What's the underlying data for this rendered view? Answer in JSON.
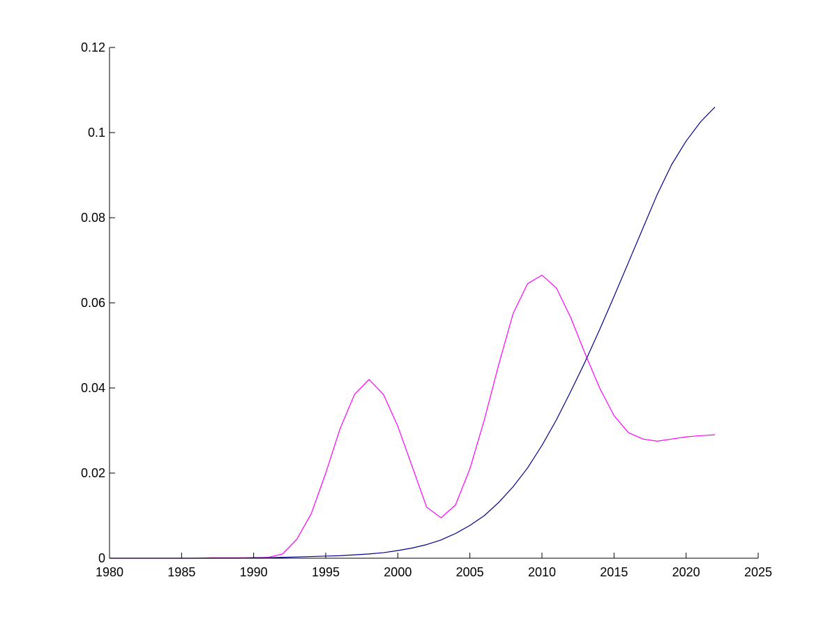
{
  "chart_data": {
    "type": "line",
    "title": "",
    "xlabel": "",
    "ylabel": "",
    "xlim": [
      1980,
      2025
    ],
    "ylim": [
      0,
      0.12
    ],
    "xticks": [
      "1980",
      "1985",
      "1990",
      "1995",
      "2000",
      "2005",
      "2010",
      "2015",
      "2020",
      "2025"
    ],
    "yticks": [
      "0",
      "0.02",
      "0.04",
      "0.06",
      "0.08",
      "0.1",
      "0.12"
    ],
    "grid": false,
    "legend": "none",
    "series": [
      {
        "color": "#ff00ff",
        "x": [
          1980,
          1981,
          1982,
          1983,
          1984,
          1985,
          1986,
          1987,
          1988,
          1989,
          1990,
          1991,
          1992,
          1993,
          1994,
          1995,
          1996,
          1997,
          1998,
          1999,
          2000,
          2001,
          2002,
          2003,
          2004,
          2005,
          2006,
          2007,
          2008,
          2009,
          2010,
          2011,
          2012,
          2013,
          2014,
          2015,
          2016,
          2017,
          2018,
          2019,
          2020,
          2021,
          2022
        ],
        "values": [
          0,
          0,
          0,
          0,
          0,
          0,
          0,
          0.0001,
          0.0001,
          0.0001,
          0.0001,
          0.0002,
          0.001,
          0.0045,
          0.0105,
          0.02,
          0.0305,
          0.0385,
          0.042,
          0.0385,
          0.031,
          0.0215,
          0.012,
          0.0095,
          0.0125,
          0.021,
          0.0325,
          0.0455,
          0.0575,
          0.0645,
          0.0665,
          0.0635,
          0.0565,
          0.048,
          0.04,
          0.0335,
          0.0295,
          0.028,
          0.0275,
          0.028,
          0.0285,
          0.0288,
          0.029
        ]
      },
      {
        "color": "#00008b",
        "x": [
          1980,
          1981,
          1982,
          1983,
          1984,
          1985,
          1986,
          1987,
          1988,
          1989,
          1990,
          1991,
          1992,
          1993,
          1994,
          1995,
          1996,
          1997,
          1998,
          1999,
          2000,
          2001,
          2002,
          2003,
          2004,
          2005,
          2006,
          2007,
          2008,
          2009,
          2010,
          2011,
          2012,
          2013,
          2014,
          2015,
          2016,
          2017,
          2018,
          2019,
          2020,
          2021,
          2022
        ],
        "values": [
          0,
          0,
          0,
          0,
          0,
          0,
          0,
          0,
          0,
          0,
          0.0001,
          0.0001,
          0.0002,
          0.0003,
          0.0004,
          0.0005,
          0.0006,
          0.0008,
          0.001,
          0.0013,
          0.0018,
          0.0024,
          0.0032,
          0.0043,
          0.0058,
          0.0077,
          0.01,
          0.0131,
          0.0168,
          0.0212,
          0.0265,
          0.0325,
          0.0392,
          0.0462,
          0.0537,
          0.0615,
          0.0695,
          0.0775,
          0.0855,
          0.0925,
          0.098,
          0.1025,
          0.106
        ]
      }
    ]
  }
}
